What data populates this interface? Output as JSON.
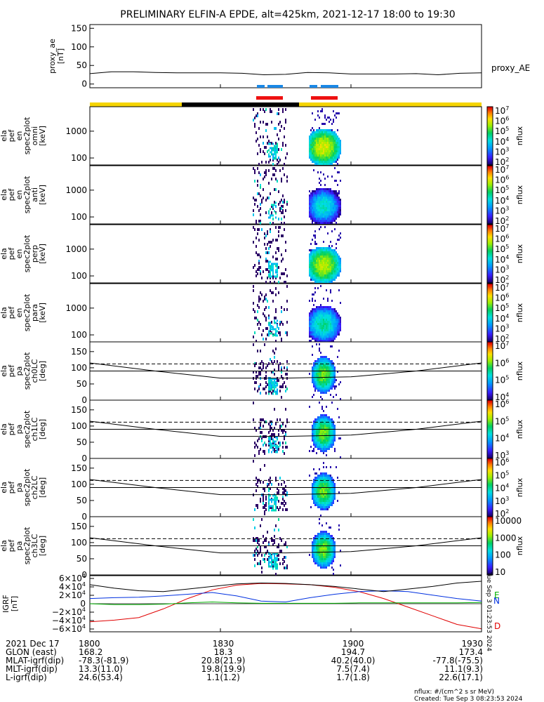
{
  "title": "PRELIMINARY ELFIN-A EPDE, alt=425km, 2021-12-17 18:00 to 19:30",
  "colors": {
    "orbit_bar_yellow": "#f5d400",
    "orbit_bar_black": "#000000",
    "bar_blue": "#1a88e6",
    "bar_red": "#ee1111",
    "geo_d": "#e00000",
    "geo_n": "#0030e0",
    "geo_e": "#00b000"
  },
  "x_ticks": [
    "1800",
    "1830",
    "1900",
    "1930"
  ],
  "chart_data": [
    {
      "type": "line",
      "panel": "proxy_ae",
      "ylabel_lines": [
        "proxy_ae",
        "[nT]"
      ],
      "ylim": [
        -10,
        160
      ],
      "yticks": [
        "0",
        "50",
        "100",
        "150"
      ],
      "series": [
        {
          "name": "proxy_AE",
          "x": [
            "18:00",
            "18:05",
            "18:10",
            "18:15",
            "18:20",
            "18:25",
            "18:30",
            "18:35",
            "18:40",
            "18:45",
            "18:50",
            "18:55",
            "19:00",
            "19:05",
            "19:10",
            "19:15",
            "19:20",
            "19:25",
            "19:30"
          ],
          "values": [
            28,
            33,
            33,
            31,
            30,
            30,
            30,
            29,
            25,
            26,
            31,
            30,
            27,
            27,
            27,
            28,
            25,
            29,
            30
          ]
        }
      ]
    },
    {
      "type": "heatmap",
      "panel": "omni",
      "ylabel_lines": [
        "ela",
        "pef",
        "en",
        "spec2plot",
        "omni",
        "[keV]"
      ],
      "y_scale": "log",
      "yticks": [
        "100",
        "1000"
      ],
      "colorbar": {
        "label": "nflux",
        "ticks": [
          "10^7",
          "10^6",
          "10^5",
          "10^4",
          "10^3",
          "10^2"
        ]
      }
    },
    {
      "type": "heatmap",
      "panel": "anti",
      "ylabel_lines": [
        "ela",
        "pef",
        "en",
        "spec2plot",
        "anti",
        "[keV]"
      ],
      "y_scale": "log",
      "yticks": [
        "100",
        "1000"
      ],
      "colorbar": {
        "label": "nflux",
        "ticks": [
          "10^7",
          "10^6",
          "10^5",
          "10^4",
          "10^3",
          "10^2"
        ]
      }
    },
    {
      "type": "heatmap",
      "panel": "perp",
      "ylabel_lines": [
        "ela",
        "pef",
        "en",
        "spec2plot",
        "perp",
        "[keV]"
      ],
      "y_scale": "log",
      "yticks": [
        "100",
        "1000"
      ],
      "colorbar": {
        "label": "nflux",
        "ticks": [
          "10^7",
          "10^6",
          "10^5",
          "10^4",
          "10^3",
          "10^2"
        ]
      }
    },
    {
      "type": "heatmap",
      "panel": "para",
      "ylabel_lines": [
        "ela",
        "pef",
        "en",
        "spec2plot",
        "para",
        "[keV]"
      ],
      "y_scale": "log",
      "yticks": [
        "100",
        "1000"
      ],
      "colorbar": {
        "label": "nflux",
        "ticks": [
          "10^7",
          "10^6",
          "10^5",
          "10^4",
          "10^3",
          "10^2"
        ]
      }
    },
    {
      "type": "heatmap",
      "panel": "ch0LC",
      "ylabel_lines": [
        "ela",
        "pef",
        "pa",
        "spec2plot",
        "ch0LC",
        "[deg]"
      ],
      "ylim": [
        0,
        180
      ],
      "yticks": [
        "0",
        "50",
        "100",
        "150"
      ],
      "colorbar": {
        "label": "nflux",
        "ticks": [
          "10^7",
          "10^6",
          "10^5",
          "10^4"
        ]
      }
    },
    {
      "type": "heatmap",
      "panel": "ch1LC",
      "ylabel_lines": [
        "ela",
        "pef",
        "pa",
        "spec2plot",
        "ch1LC",
        "[deg]"
      ],
      "ylim": [
        0,
        180
      ],
      "yticks": [
        "0",
        "50",
        "100",
        "150"
      ],
      "colorbar": {
        "label": "nflux",
        "ticks": [
          "10^6",
          "10^5",
          "10^4",
          "10^3"
        ]
      }
    },
    {
      "type": "heatmap",
      "panel": "ch2LC",
      "ylabel_lines": [
        "ela",
        "pef",
        "pa",
        "spec2plot",
        "ch2LC",
        "[deg]"
      ],
      "ylim": [
        0,
        180
      ],
      "yticks": [
        "0",
        "50",
        "100",
        "150"
      ],
      "colorbar": {
        "label": "nflux",
        "ticks": [
          "10^6",
          "10^5",
          "10^4",
          "10^3",
          "10^2"
        ]
      }
    },
    {
      "type": "heatmap",
      "panel": "ch3LC",
      "ylabel_lines": [
        "ela",
        "pef",
        "pa",
        "spec2plot",
        "ch3LC",
        "[deg]"
      ],
      "ylim": [
        0,
        180
      ],
      "yticks": [
        "0",
        "50",
        "100",
        "150"
      ],
      "colorbar": {
        "label": "nflux",
        "ticks": [
          "10000",
          "1000",
          "100",
          "10"
        ]
      }
    },
    {
      "type": "line",
      "panel": "IGRF",
      "ylabel_lines": [
        "IGRF",
        "[nT]"
      ],
      "ylim": [
        -65000,
        65000
      ],
      "yticks": [
        "6×10^4",
        "4×10^4",
        "2×10^4",
        "0",
        "−2×10^4",
        "−4×10^4",
        "−6×10^4"
      ],
      "series": [
        {
          "name": "D",
          "values": [
            -42000,
            -38000,
            -32000,
            -12000,
            12000,
            32000,
            43000,
            47000,
            46000,
            44000,
            38000,
            28000,
            12000,
            -8000,
            -28000,
            -48000,
            -58000
          ]
        },
        {
          "name": "N",
          "values": [
            12000,
            14000,
            15000,
            18000,
            22000,
            26000,
            18000,
            6000,
            4000,
            14000,
            22000,
            28000,
            30000,
            28000,
            20000,
            12000,
            6000
          ]
        },
        {
          "name": "E",
          "values": [
            0,
            -2000,
            -2000,
            -1000,
            2000,
            4000,
            2000,
            1000,
            1000,
            1000,
            1000,
            2000,
            2000,
            2000,
            2000,
            2000,
            3000
          ]
        }
      ],
      "series_labels": [
        "E",
        "N",
        "D"
      ],
      "side_text": "Tue Sep 3 01:23:53 2024"
    }
  ],
  "footer": {
    "rows": [
      {
        "label": "2021 Dec 17",
        "values": [
          "1800",
          "1830",
          "1900",
          "1930"
        ]
      },
      {
        "label": "GLON (east)",
        "values": [
          "168.2",
          "18.3",
          "194.7",
          "173.4"
        ]
      },
      {
        "label": "MLAT-igrf(dip)",
        "values": [
          "-78.3(-81.9)",
          "20.8(21.9)",
          "40.2(40.0)",
          "-77.8(-75.5)"
        ]
      },
      {
        "label": "MLT-igrf(dip)",
        "values": [
          "13.3(11.0)",
          "19.8(19.9)",
          "7.5(7.4)",
          "11.1(9.3)"
        ]
      },
      {
        "label": "L-igrf(dip)",
        "values": [
          "24.6(53.4)",
          "1.1(1.2)",
          "1.7(1.8)",
          "22.6(17.1)"
        ]
      }
    ],
    "note1": "nflux: #/(cm^2 s sr MeV)",
    "note2": "Created: Tue Sep  3 08:23:53 2024"
  }
}
